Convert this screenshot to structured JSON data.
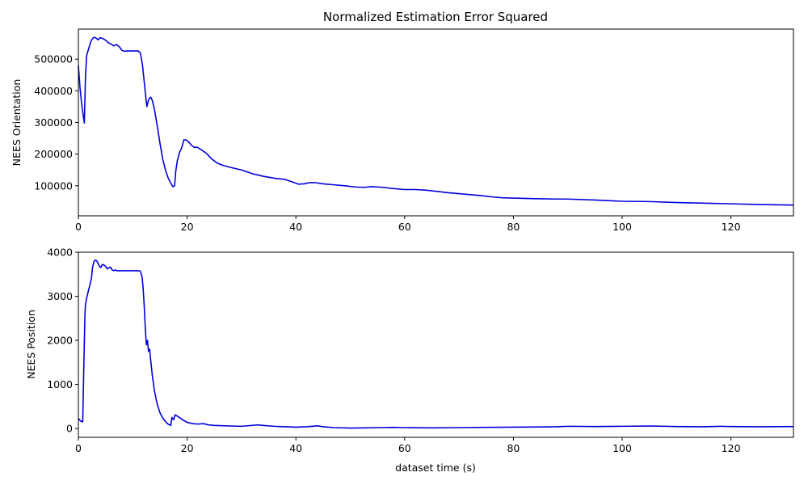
{
  "chart_data": [
    {
      "type": "line",
      "title": "Normalized Estimation Error Squared",
      "xlabel": "",
      "ylabel": "NEES Orientation",
      "xlim": [
        0,
        131.5
      ],
      "ylim": [
        5000,
        595000
      ],
      "xticks": [
        "0",
        "20",
        "40",
        "60",
        "80",
        "100",
        "120"
      ],
      "yticks": [
        "100000",
        "200000",
        "300000",
        "400000",
        "500000"
      ],
      "grid": false,
      "line_color": "#0000dd",
      "series": [
        {
          "x": [
            0,
            0.3,
            0.6,
            0.9,
            1.1,
            1.3,
            1.5,
            1.8,
            2.1,
            2.4,
            2.7,
            3.0,
            3.3,
            3.6,
            4.0,
            4.5,
            5.0,
            5.5,
            6.0,
            6.5,
            7.0,
            7.5,
            8.0,
            8.5,
            9.0,
            10.0,
            11.0,
            11.4,
            11.8,
            12.1,
            12.4,
            12.6,
            12.8,
            13.0,
            13.3,
            13.6,
            14.0,
            14.5,
            15.0,
            15.5,
            16.0,
            16.5,
            17.0,
            17.4,
            17.7,
            17.9,
            18.2,
            18.6,
            19.0,
            19.4,
            19.8,
            20.3,
            20.8,
            21.3,
            21.8,
            22.5,
            23.5,
            24.5,
            25.5,
            26.5,
            28.0,
            30.0,
            32.0,
            34.0,
            36.0,
            38.0,
            39.5,
            40.5,
            41.5,
            42.5,
            43.5,
            45.0,
            47.0,
            49.0,
            51.0,
            52.5,
            54.0,
            56.0,
            58.0,
            60.0,
            62.0,
            64.0,
            66.0,
            68.0,
            70.0,
            72.0,
            74.0,
            76.0,
            78.0,
            80.0,
            84.0,
            88.0,
            90.0,
            95.0,
            100.0,
            105.0,
            110.0,
            115.0,
            120.0,
            125.0,
            128.0,
            131.5
          ],
          "y": [
            480000,
            410000,
            360000,
            320000,
            298000,
            440000,
            510000,
            528000,
            545000,
            560000,
            567000,
            569000,
            566000,
            561000,
            568000,
            565000,
            560000,
            552000,
            548000,
            542000,
            546000,
            540000,
            528000,
            525000,
            526000,
            526000,
            526000,
            520000,
            480000,
            430000,
            380000,
            350000,
            365000,
            375000,
            380000,
            370000,
            340000,
            290000,
            235000,
            185000,
            150000,
            125000,
            108000,
            97000,
            100000,
            145000,
            180000,
            205000,
            220000,
            245000,
            245000,
            238000,
            228000,
            221000,
            222000,
            215000,
            203000,
            185000,
            172000,
            165000,
            158000,
            150000,
            138000,
            130000,
            124000,
            120000,
            111000,
            105000,
            106000,
            110000,
            110000,
            106000,
            103000,
            100000,
            96000,
            95000,
            97000,
            95000,
            91000,
            88000,
            88000,
            86000,
            82000,
            78000,
            75000,
            72000,
            69000,
            65000,
            62000,
            61000,
            59000,
            58000,
            58000,
            55000,
            51000,
            50000,
            47000,
            45000,
            43000,
            41000,
            40000,
            39000
          ]
        }
      ]
    },
    {
      "type": "line",
      "title": "",
      "xlabel": "dataset time (s)",
      "ylabel": "NEES Position",
      "xlim": [
        0,
        131.5
      ],
      "ylim": [
        -200,
        4000
      ],
      "xticks": [
        "0",
        "20",
        "40",
        "60",
        "80",
        "100",
        "120"
      ],
      "yticks": [
        "0",
        "1000",
        "2000",
        "3000",
        "4000"
      ],
      "grid": false,
      "line_color": "#0000dd",
      "series": [
        {
          "x": [
            0,
            0.4,
            0.8,
            1.0,
            1.2,
            1.3,
            1.5,
            1.8,
            2.1,
            2.4,
            2.6,
            2.9,
            3.2,
            3.5,
            3.8,
            4.1,
            4.4,
            4.7,
            5.0,
            5.3,
            5.6,
            5.9,
            6.2,
            6.5,
            6.8,
            7.0,
            8.0,
            9.0,
            10.0,
            11.0,
            11.4,
            11.7,
            11.9,
            12.1,
            12.3,
            12.5,
            12.7,
            12.9,
            13.1,
            13.3,
            13.6,
            14.0,
            14.5,
            15.0,
            15.5,
            16.0,
            16.5,
            17.0,
            17.2,
            17.5,
            17.8,
            18.2,
            18.8,
            19.4,
            20.0,
            21.0,
            22.0,
            23.0,
            24.0,
            25.0,
            27.0,
            30.0,
            33.0,
            34.0,
            36.0,
            38.0,
            40.0,
            42.0,
            44.0,
            45.0,
            47.0,
            50.0,
            53.0,
            55.0,
            58.0,
            60.0,
            65.0,
            70.0,
            75.0,
            80.0,
            85.0,
            88.0,
            90.0,
            95.0,
            100.0,
            105.0,
            108.0,
            110.0,
            115.0,
            118.0,
            120.0,
            125.0,
            131.5
          ],
          "y": [
            230,
            170,
            150,
            1400,
            2550,
            2800,
            2950,
            3100,
            3250,
            3400,
            3650,
            3800,
            3820,
            3780,
            3700,
            3650,
            3720,
            3710,
            3680,
            3620,
            3650,
            3660,
            3600,
            3580,
            3600,
            3580,
            3580,
            3580,
            3580,
            3580,
            3570,
            3450,
            3200,
            2800,
            2300,
            1900,
            2000,
            1750,
            1800,
            1550,
            1200,
            850,
            550,
            360,
            240,
            160,
            100,
            70,
            250,
            200,
            310,
            280,
            230,
            180,
            140,
            110,
            100,
            110,
            80,
            70,
            60,
            50,
            80,
            70,
            50,
            40,
            30,
            40,
            60,
            40,
            20,
            10,
            15,
            20,
            25,
            20,
            15,
            20,
            25,
            30,
            35,
            40,
            50,
            45,
            50,
            55,
            50,
            45,
            40,
            50,
            45,
            40,
            45
          ]
        }
      ]
    }
  ]
}
